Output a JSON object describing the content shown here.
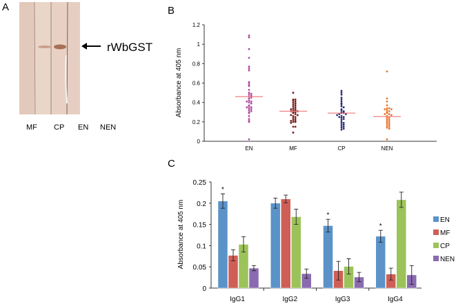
{
  "panels": {
    "a": {
      "letter": "A",
      "band_label": "rWbGST",
      "lane_labels": [
        "MF",
        "CP",
        "EN",
        "NEN"
      ]
    },
    "b": {
      "letter": "B"
    },
    "c": {
      "letter": "C"
    }
  },
  "colors": {
    "blot_bg": "#e6cfc2",
    "band": "#a86f55",
    "en_dot": "#b04aa0",
    "mf_dot": "#7a1a1a",
    "cp_dot": "#2a2a78",
    "nen_dot": "#e8742a",
    "median": "#f08080",
    "bar_en": "#5b93c9",
    "bar_mf": "#cf5f56",
    "bar_cp": "#9cc35a",
    "bar_nen": "#8a6bb0"
  },
  "chart_data": [
    {
      "type": "scatter",
      "panel": "B",
      "title": "",
      "xlabel": "",
      "ylabel": "Absorbance at 405 nm",
      "ylim": [
        0,
        1.2
      ],
      "yticks": [
        "0",
        "0.2",
        "0.4",
        "0.6",
        "0.8",
        "1",
        "1.2"
      ],
      "categories": [
        "EN",
        "MF",
        "CP",
        "NEN"
      ],
      "medians": [
        0.46,
        0.31,
        0.29,
        0.255
      ],
      "series": [
        {
          "name": "EN",
          "values": [
            1.09,
            1.07,
            0.95,
            0.86,
            0.77,
            0.75,
            0.73,
            0.61,
            0.6,
            0.58,
            0.57,
            0.53,
            0.5,
            0.49,
            0.48,
            0.47,
            0.46,
            0.45,
            0.44,
            0.42,
            0.41,
            0.41,
            0.4,
            0.39,
            0.37,
            0.36,
            0.35,
            0.35,
            0.34,
            0.33,
            0.32,
            0.31,
            0.3,
            0.29,
            0.26,
            0.23,
            0.21,
            0.2,
            0.02
          ]
        },
        {
          "name": "MF",
          "values": [
            0.5,
            0.43,
            0.43,
            0.42,
            0.41,
            0.4,
            0.39,
            0.38,
            0.37,
            0.36,
            0.35,
            0.34,
            0.33,
            0.33,
            0.32,
            0.32,
            0.31,
            0.31,
            0.3,
            0.3,
            0.29,
            0.28,
            0.27,
            0.27,
            0.26,
            0.25,
            0.24,
            0.23,
            0.22,
            0.21,
            0.21,
            0.2,
            0.2,
            0.19,
            0.15,
            0.15,
            0.09
          ]
        },
        {
          "name": "CP",
          "values": [
            0.52,
            0.5,
            0.48,
            0.45,
            0.43,
            0.41,
            0.39,
            0.38,
            0.36,
            0.35,
            0.33,
            0.32,
            0.31,
            0.3,
            0.3,
            0.29,
            0.29,
            0.28,
            0.28,
            0.27,
            0.26,
            0.25,
            0.25,
            0.24,
            0.23,
            0.22,
            0.2,
            0.19,
            0.18,
            0.17,
            0.16,
            0.15,
            0.14,
            0.13,
            0.12
          ]
        },
        {
          "name": "NEN",
          "values": [
            0.72,
            0.44,
            0.41,
            0.37,
            0.34,
            0.34,
            0.33,
            0.33,
            0.32,
            0.31,
            0.3,
            0.29,
            0.28,
            0.28,
            0.27,
            0.26,
            0.25,
            0.24,
            0.23,
            0.22,
            0.21,
            0.2,
            0.19,
            0.18,
            0.17,
            0.16,
            0.15,
            0.14,
            0.13,
            0.02
          ]
        }
      ]
    },
    {
      "type": "bar",
      "panel": "C",
      "title": "",
      "xlabel": "",
      "ylabel": "Absorbance at 405 nm",
      "ylim": [
        0,
        0.25
      ],
      "yticks": [
        "0",
        "0.05",
        "0.1",
        "0.15",
        "0.2",
        "0.25"
      ],
      "categories": [
        "IgG1",
        "IgG2",
        "IgG3",
        "IgG4"
      ],
      "legend_position": "right",
      "series": [
        {
          "name": "EN",
          "values": [
            0.205,
            0.2,
            0.147,
            0.122
          ],
          "errors": [
            0.017,
            0.012,
            0.015,
            0.014
          ]
        },
        {
          "name": "MF",
          "values": [
            0.077,
            0.21,
            0.041,
            0.033
          ],
          "errors": [
            0.013,
            0.009,
            0.022,
            0.014
          ]
        },
        {
          "name": "CP",
          "values": [
            0.103,
            0.168,
            0.051,
            0.208
          ],
          "errors": [
            0.018,
            0.018,
            0.018,
            0.018
          ]
        },
        {
          "name": "NEN",
          "values": [
            0.047,
            0.034,
            0.026,
            0.031
          ],
          "errors": [
            0.006,
            0.011,
            0.011,
            0.022
          ]
        }
      ],
      "significance_marker": "*",
      "significant": [
        {
          "category": "IgG1",
          "series": "EN"
        },
        {
          "category": "IgG3",
          "series": "EN"
        },
        {
          "category": "IgG4",
          "series": "EN"
        }
      ]
    }
  ]
}
